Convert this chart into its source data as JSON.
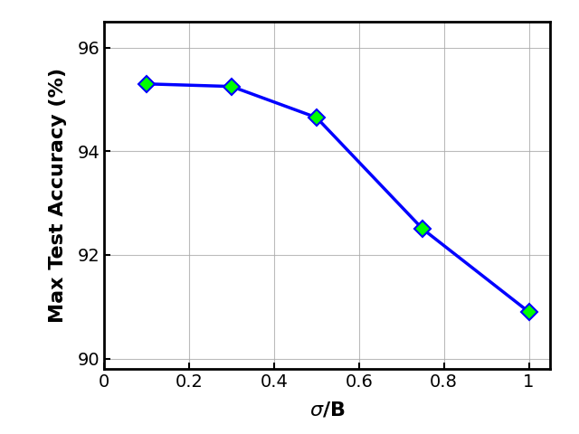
{
  "x": [
    0.1,
    0.3,
    0.5,
    0.75,
    1.0
  ],
  "y": [
    95.3,
    95.25,
    94.65,
    92.5,
    90.9
  ],
  "line_color": "#0000FF",
  "marker_face_color": "#00FF00",
  "marker_edge_color": "#0000FF",
  "marker_style": "D",
  "marker_size": 9,
  "line_width": 2.5,
  "xlabel": "σ/B",
  "ylabel": "Max Test Accuracy (%)",
  "xlim": [
    0.0,
    1.05
  ],
  "ylim": [
    89.8,
    96.5
  ],
  "yticks": [
    90,
    92,
    94,
    96
  ],
  "xticks": [
    0.0,
    0.2,
    0.4,
    0.6,
    0.8,
    1.0
  ],
  "xticklabels": [
    "0",
    "0.2",
    "0.4",
    "0.6",
    "0.8",
    "1"
  ],
  "grid": true,
  "background_color": "#ffffff",
  "tick_fontsize": 14,
  "label_fontsize": 16
}
